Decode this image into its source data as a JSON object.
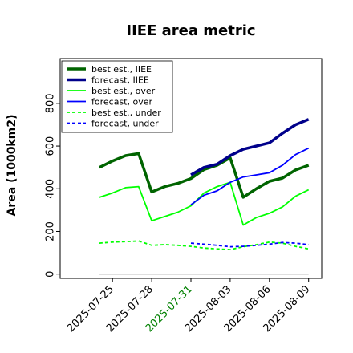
{
  "chart_data": {
    "type": "line",
    "title": "IIEE area metric",
    "ylabel": "Area (1000km2)",
    "xlabel": "",
    "ylim": [
      -20,
      1010
    ],
    "yticks": [
      0,
      200,
      400,
      600,
      800
    ],
    "xlim": [
      "2025-07-21",
      "2025-08-10"
    ],
    "xticks": [
      {
        "date": "2025-07-25",
        "label": "2025-07-25",
        "color": "#000000"
      },
      {
        "date": "2025-07-28",
        "label": "2025-07-28",
        "color": "#000000"
      },
      {
        "date": "2025-07-31",
        "label": "2025-07-31",
        "color": "#008000"
      },
      {
        "date": "2025-08-03",
        "label": "2025-08-03",
        "color": "#000000"
      },
      {
        "date": "2025-08-06",
        "label": "2025-08-06",
        "color": "#000000"
      },
      {
        "date": "2025-08-09",
        "label": "2025-08-09",
        "color": "#000000"
      }
    ],
    "legend_position": "top-left",
    "series": [
      {
        "name": "best est., IIEE",
        "color": "#006400",
        "width": 3.5,
        "dash": "",
        "x": [
          "2025-07-24",
          "2025-07-25",
          "2025-07-26",
          "2025-07-27",
          "2025-07-28",
          "2025-07-29",
          "2025-07-30",
          "2025-07-31",
          "2025-08-01",
          "2025-08-02",
          "2025-08-03",
          "2025-08-04",
          "2025-08-05",
          "2025-08-06",
          "2025-08-07",
          "2025-08-08",
          "2025-08-09"
        ],
        "y": [
          500,
          530,
          555,
          565,
          385,
          410,
          425,
          448,
          490,
          510,
          545,
          360,
          400,
          435,
          450,
          488,
          510
        ]
      },
      {
        "name": "forecast, IIEE",
        "color": "#00008B",
        "width": 3.5,
        "dash": "",
        "x": [
          "2025-07-31",
          "2025-08-01",
          "2025-08-02",
          "2025-08-03",
          "2025-08-04",
          "2025-08-05",
          "2025-08-06",
          "2025-08-07",
          "2025-08-08",
          "2025-08-09"
        ],
        "y": [
          465,
          500,
          515,
          555,
          585,
          600,
          615,
          660,
          700,
          725
        ]
      },
      {
        "name": "best est., over",
        "color": "#00FF00",
        "width": 1.8,
        "dash": "",
        "x": [
          "2025-07-24",
          "2025-07-25",
          "2025-07-26",
          "2025-07-27",
          "2025-07-28",
          "2025-07-29",
          "2025-07-30",
          "2025-07-31",
          "2025-08-01",
          "2025-08-02",
          "2025-08-03",
          "2025-08-04",
          "2025-08-05",
          "2025-08-06",
          "2025-08-07",
          "2025-08-08",
          "2025-08-09"
        ],
        "y": [
          360,
          380,
          405,
          410,
          250,
          270,
          290,
          320,
          380,
          410,
          430,
          230,
          265,
          285,
          315,
          365,
          395
        ]
      },
      {
        "name": "forecast, over",
        "color": "#0000FF",
        "width": 1.8,
        "dash": "",
        "x": [
          "2025-07-31",
          "2025-08-01",
          "2025-08-02",
          "2025-08-03",
          "2025-08-04",
          "2025-08-05",
          "2025-08-06",
          "2025-08-07",
          "2025-08-08",
          "2025-08-09"
        ],
        "y": [
          325,
          370,
          390,
          430,
          455,
          465,
          475,
          510,
          560,
          590
        ]
      },
      {
        "name": "best est., under",
        "color": "#00FF00",
        "width": 1.8,
        "dash": "4,3",
        "x": [
          "2025-07-24",
          "2025-07-25",
          "2025-07-26",
          "2025-07-27",
          "2025-07-28",
          "2025-07-29",
          "2025-07-30",
          "2025-07-31",
          "2025-08-01",
          "2025-08-02",
          "2025-08-03",
          "2025-08-04",
          "2025-08-05",
          "2025-08-06",
          "2025-08-07",
          "2025-08-08",
          "2025-08-09"
        ],
        "y": [
          145,
          150,
          152,
          155,
          135,
          138,
          135,
          130,
          122,
          118,
          115,
          128,
          138,
          150,
          145,
          130,
          118
        ]
      },
      {
        "name": "forecast, under",
        "color": "#0000FF",
        "width": 1.8,
        "dash": "4,3",
        "x": [
          "2025-07-31",
          "2025-08-01",
          "2025-08-02",
          "2025-08-03",
          "2025-08-04",
          "2025-08-05",
          "2025-08-06",
          "2025-08-07",
          "2025-08-08",
          "2025-08-09"
        ],
        "y": [
          145,
          140,
          135,
          128,
          130,
          135,
          140,
          148,
          145,
          138
        ]
      },
      {
        "name": "",
        "color": "#808080",
        "width": 1.2,
        "dash": "",
        "x": [
          "2025-07-24",
          "2025-08-09"
        ],
        "y": [
          0,
          0
        ]
      }
    ]
  }
}
